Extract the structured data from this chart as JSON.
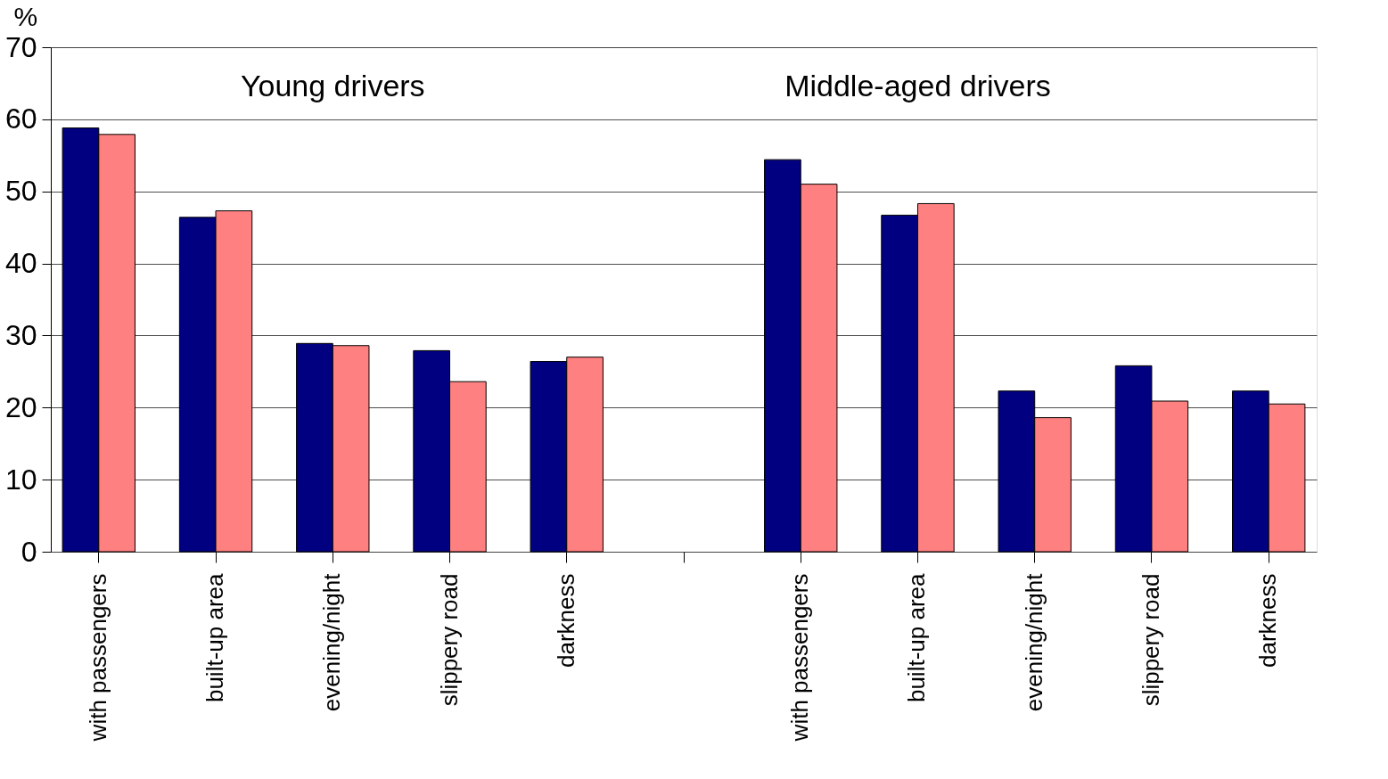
{
  "chart_data": {
    "type": "bar",
    "ylabel": "%",
    "categories": [
      "with passengers",
      "built-up area",
      "evening/night",
      "slippery road",
      "darkness",
      null,
      "with passengers",
      "built-up area",
      "evening/night",
      "slippery road",
      "darkness"
    ],
    "series": [
      {
        "color": "#000080",
        "values": [
          58.8,
          46.4,
          28.9,
          27.9,
          26.4,
          null,
          54.4,
          46.7,
          22.3,
          25.8,
          22.3
        ]
      },
      {
        "color": "#ff8080",
        "values": [
          57.9,
          47.3,
          28.6,
          23.6,
          27.0,
          null,
          51.0,
          48.3,
          18.6,
          20.9,
          20.5
        ]
      }
    ],
    "ylim": [
      0,
      70
    ],
    "yticks": [
      0,
      10,
      20,
      30,
      40,
      50,
      60,
      70
    ],
    "grid": "y",
    "legend": false,
    "annotations": [
      "Young drivers",
      "Middle-aged drivers"
    ]
  }
}
